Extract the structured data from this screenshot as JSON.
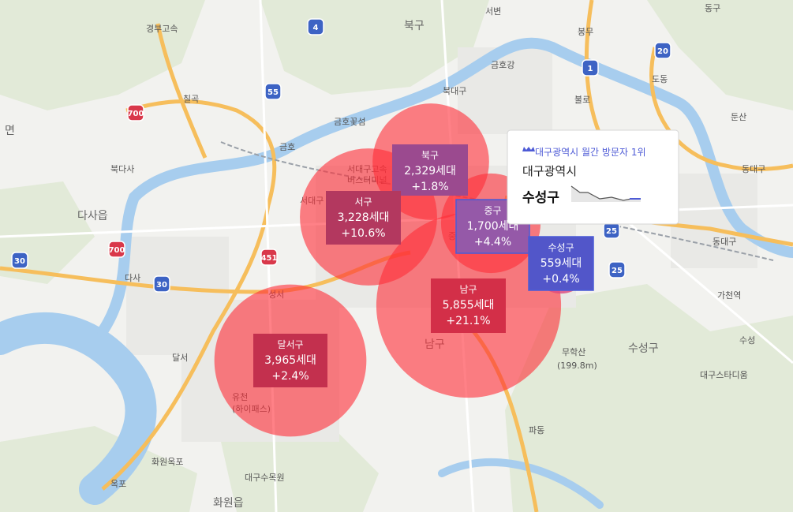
{
  "map": {
    "districts": [
      {
        "name": "북구",
        "households": 2329,
        "households_label": "2,329세대",
        "change_label": "+1.8%"
      },
      {
        "name": "서구",
        "households": 3228,
        "households_label": "3,228세대",
        "change_label": "+10.6%"
      },
      {
        "name": "중구",
        "households": 1700,
        "households_label": "1,700세대",
        "change_label": "+4.4%"
      },
      {
        "name": "남구",
        "households": 5855,
        "households_label": "5,855세대",
        "change_label": "+21.1%"
      },
      {
        "name": "달서구",
        "households": 3965,
        "households_label": "3,965세대",
        "change_label": "+2.4%"
      },
      {
        "name": "수성구",
        "households": 559,
        "households_label": "559세대",
        "change_label": "+0.4%"
      }
    ],
    "tooltip": {
      "badge": "대구광역시 월간 방문자 1위",
      "city": "대구광역시",
      "district": "수성구"
    },
    "labels": [
      "북구",
      "서변",
      "봉무",
      "금호강",
      "북대구",
      "칠곡",
      "불로",
      "도동",
      "둔산",
      "금호꽃섬",
      "금호",
      "북다사",
      "다사읍",
      "서대구",
      "동대구",
      "동대구",
      "다사",
      "성서",
      "가천역",
      "수성구",
      "남구",
      "무학산",
      "(199.8m)",
      "수성",
      "달서",
      "대구스타디움",
      "유천",
      "(하이패스)",
      "파동",
      "화원옥포",
      "옥포",
      "대구수목원",
      "화원읍",
      "경부고속",
      "동구",
      "서대구고속",
      "버스터미널",
      "면",
      "중"
    ],
    "shields": [
      "4",
      "55",
      "700",
      "451",
      "30",
      "20",
      "1",
      "25",
      "25",
      "700",
      "30"
    ]
  }
}
